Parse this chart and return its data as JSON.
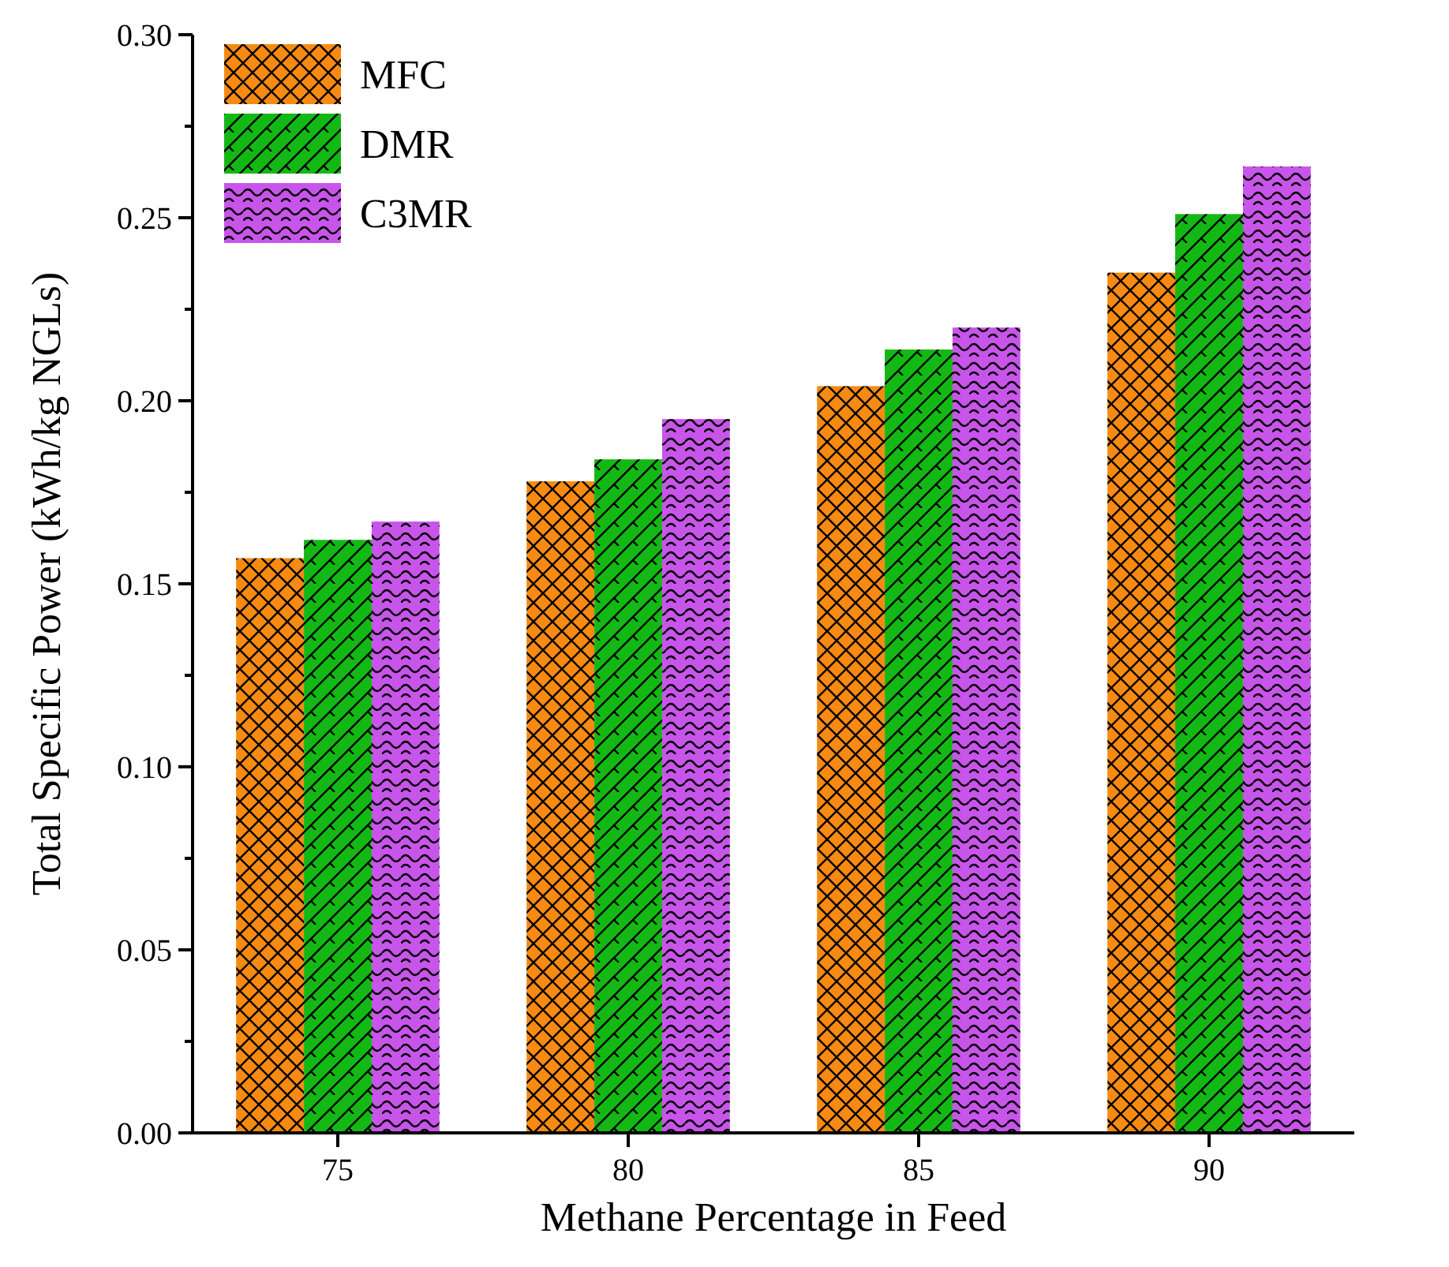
{
  "chart_data": {
    "type": "bar",
    "xlabel": "Methane Percentage in Feed",
    "ylabel": "Total Specific Power (kWh/kg NGLs)",
    "categories": [
      "75",
      "80",
      "85",
      "90"
    ],
    "series": [
      {
        "name": "MFC",
        "color": "#f78a12",
        "values": [
          0.157,
          0.178,
          0.204,
          0.235
        ]
      },
      {
        "name": "DMR",
        "color": "#14b814",
        "values": [
          0.162,
          0.184,
          0.214,
          0.251
        ]
      },
      {
        "name": "C3MR",
        "color": "#c855ea",
        "values": [
          0.167,
          0.195,
          0.22,
          0.264
        ]
      }
    ],
    "ylim": [
      0,
      0.3
    ],
    "yticks": [
      {
        "value": 0,
        "label": "0.00"
      },
      {
        "value": 0.025,
        "label": null
      },
      {
        "value": 0.05,
        "label": "0.05"
      },
      {
        "value": 0.075,
        "label": null
      },
      {
        "value": 0.1,
        "label": "0.10"
      },
      {
        "value": 0.125,
        "label": null
      },
      {
        "value": 0.15,
        "label": "0.15"
      },
      {
        "value": 0.175,
        "label": null
      },
      {
        "value": 0.2,
        "label": "0.20"
      },
      {
        "value": 0.225,
        "label": null
      },
      {
        "value": 0.25,
        "label": "0.25"
      },
      {
        "value": 0.275,
        "label": null
      },
      {
        "value": 0.3,
        "label": "0.30"
      }
    ],
    "legend": "top left",
    "grid": false
  }
}
